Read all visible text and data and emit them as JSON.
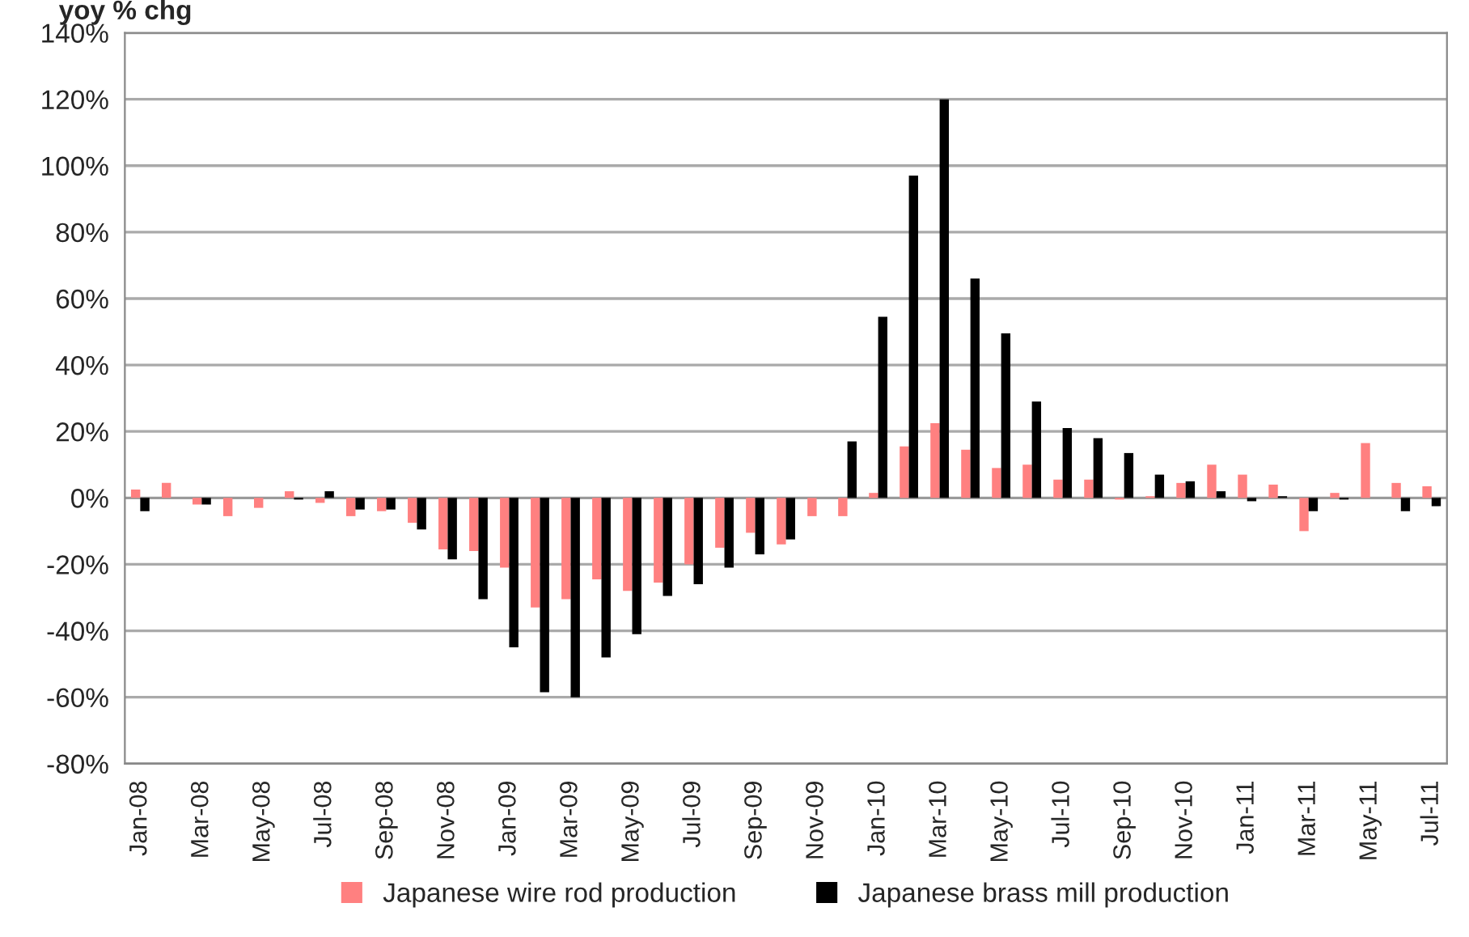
{
  "chart_data": {
    "type": "bar",
    "title": "yoy % chg",
    "categories": [
      "Jan-08",
      null,
      "Mar-08",
      null,
      "May-08",
      null,
      "Jul-08",
      null,
      "Sep-08",
      null,
      "Nov-08",
      null,
      "Jan-09",
      null,
      "Mar-09",
      null,
      "May-09",
      null,
      "Jul-09",
      null,
      "Sep-09",
      null,
      "Nov-09",
      null,
      "Jan-10",
      null,
      "Mar-10",
      null,
      "May-10",
      null,
      "Jul-10",
      null,
      "Sep-10",
      null,
      "Nov-10",
      null,
      "Jan-11",
      null,
      "Mar-11",
      null,
      "May-11",
      null,
      "Jul-11"
    ],
    "series": [
      {
        "name": "Japanese wire rod production",
        "color": "#ff8080",
        "values": [
          2.5,
          4.5,
          -2,
          -5.5,
          -3,
          2,
          -1.5,
          -5.5,
          -4,
          -7.5,
          -15.5,
          -16,
          -21,
          -33,
          -30.5,
          -24.5,
          -28,
          -25.5,
          -20,
          -15,
          -10.5,
          -14,
          -5.5,
          -5.5,
          1.5,
          15.5,
          22.5,
          14.5,
          9,
          10,
          5.5,
          5.5,
          -0.5,
          0.5,
          4.5,
          10,
          7,
          4,
          -10,
          1.5,
          16.5,
          4.5,
          3.5
        ]
      },
      {
        "name": "Japanese brass mill production",
        "color": "#000000",
        "values": [
          -4,
          0,
          -2,
          0,
          0,
          -0.5,
          2,
          -3.5,
          -3.5,
          -9.5,
          -18.5,
          -30.5,
          -45,
          -58.5,
          -60,
          -48,
          -41,
          -29.5,
          -26,
          -21,
          -17,
          -12.5,
          0,
          17,
          54.5,
          97,
          120,
          66,
          49.5,
          29,
          21,
          18,
          13.5,
          7,
          5,
          2,
          -1,
          0.5,
          -4,
          -0.5,
          0,
          -4,
          -2.5
        ]
      }
    ],
    "ylim": [
      -80,
      140
    ],
    "yticks": [
      {
        "value": -80,
        "label": "-80%"
      },
      {
        "value": -60,
        "label": "-60%"
      },
      {
        "value": -40,
        "label": "-40%"
      },
      {
        "value": -20,
        "label": "-20%"
      },
      {
        "value": 0,
        "label": "0%"
      },
      {
        "value": 20,
        "label": "20%"
      },
      {
        "value": 40,
        "label": "40%"
      },
      {
        "value": 60,
        "label": "60%"
      },
      {
        "value": 80,
        "label": "80%"
      },
      {
        "value": 100,
        "label": "100%"
      },
      {
        "value": 120,
        "label": "120%"
      },
      {
        "value": 140,
        "label": "140%"
      }
    ],
    "grid": "y",
    "legend": "bottom"
  }
}
